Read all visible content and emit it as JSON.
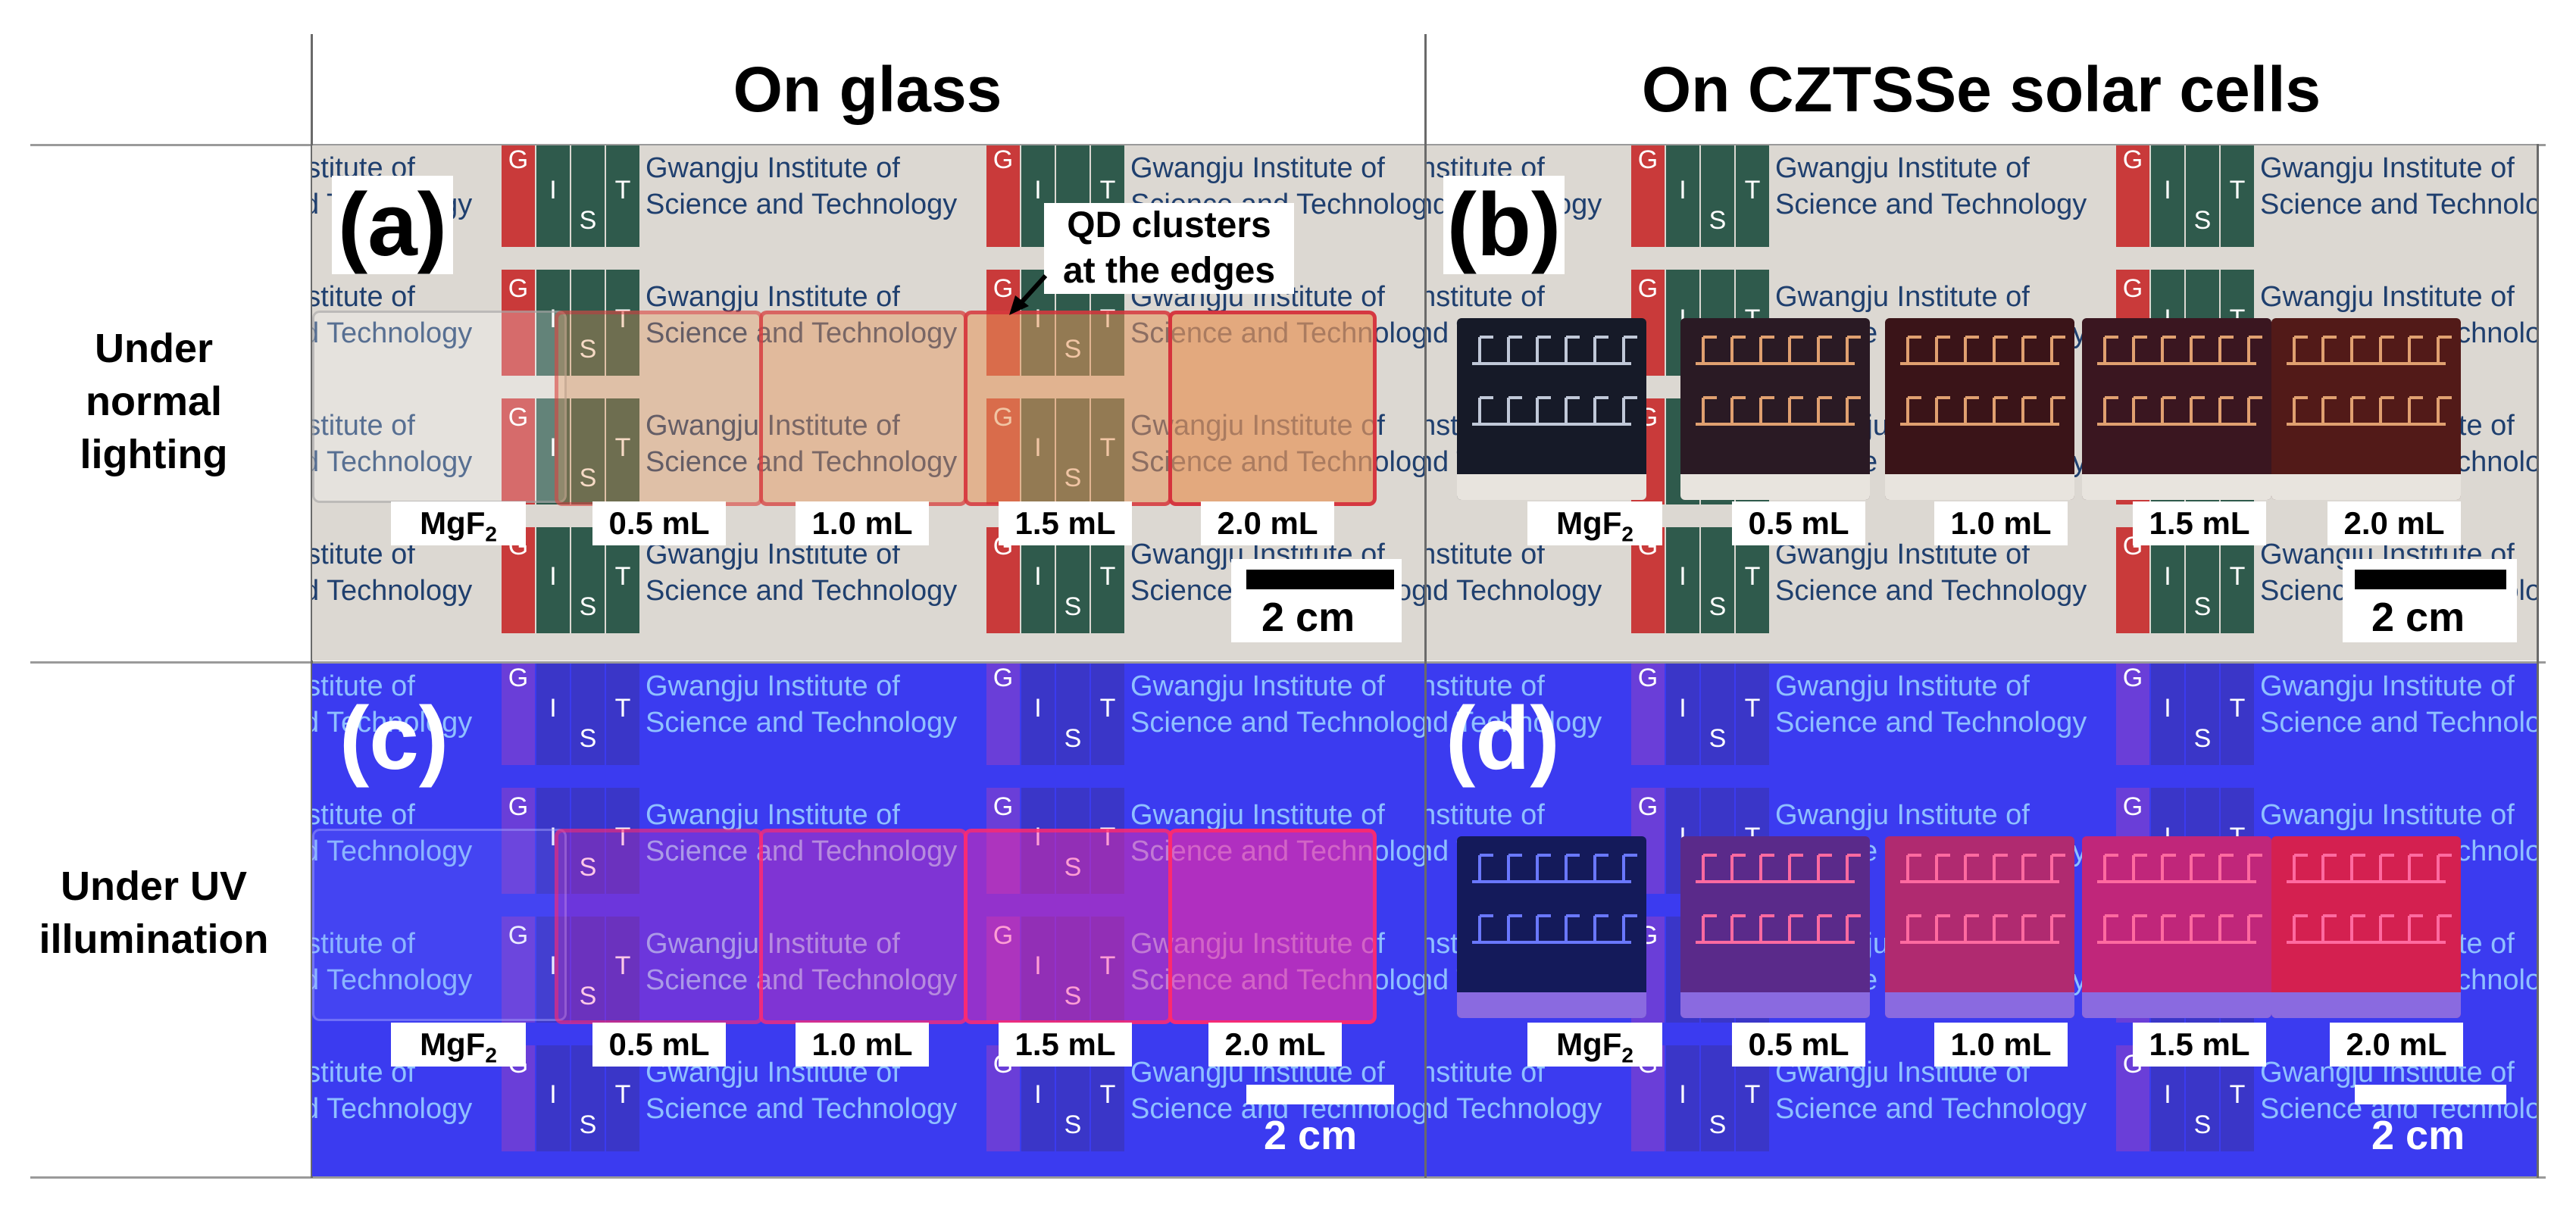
{
  "columns": {
    "left": "On glass",
    "right": "On CZTSSe solar cells"
  },
  "rows": {
    "top": [
      "Under",
      "normal",
      "lighting"
    ],
    "bottom": [
      "Under UV",
      "illumination"
    ]
  },
  "panels": {
    "a": "(a)",
    "b": "(b)",
    "c": "(c)",
    "d": "(d)"
  },
  "background_logo": {
    "letters": [
      "G",
      "I",
      "S",
      "T"
    ],
    "line1": "Gwangju Institute of",
    "line2": "Science and Technology"
  },
  "sample_labels": [
    "MgF",
    "0.5 mL",
    "1.0 mL",
    "1.5 mL",
    "2.0 mL"
  ],
  "mgf_subscript": "2",
  "annotation": [
    "QD clusters",
    "at the edges"
  ],
  "scale": "2 cm",
  "colors": {
    "normal_bg": "#dcd8d2",
    "uv_bg": "#3b3bf0",
    "qd_edge_normal": "#d42a3a",
    "qd_edge_uv": "#ff2a6a",
    "cell_dark": "#1a1c2a"
  }
}
